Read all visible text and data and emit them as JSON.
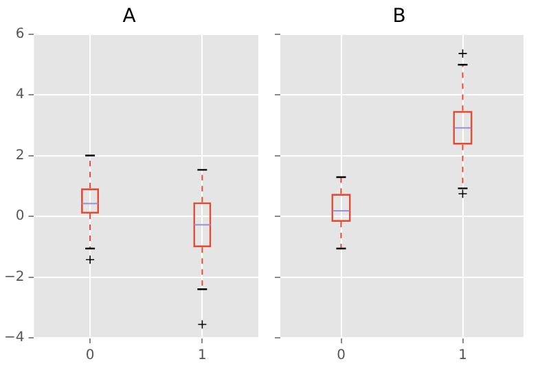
{
  "chart_data": [
    {
      "type": "box",
      "title": "A",
      "categories": [
        "0",
        "1"
      ],
      "series": [
        {
          "color": "#e24a33",
          "boxes": [
            {
              "low": -1.06,
              "q1": 0.09,
              "median": 0.42,
              "q3": 0.92,
              "high": 2.0,
              "outliers": [
                -1.43
              ]
            },
            {
              "low": -2.4,
              "q1": -1.02,
              "median": -0.28,
              "q3": 0.46,
              "high": 1.53,
              "outliers": [
                -3.56
              ]
            }
          ]
        }
      ],
      "ylim": [
        -4,
        6
      ],
      "yticks": [
        {
          "value": -4,
          "label": "−4"
        },
        {
          "value": -2,
          "label": "−2"
        },
        0,
        2,
        4,
        6
      ],
      "grid": true
    },
    {
      "type": "box",
      "title": "B",
      "categories": [
        "0",
        "1"
      ],
      "series": [
        {
          "color": "#e24a33",
          "boxes": [
            {
              "low": -1.06,
              "q1": -0.18,
              "median": 0.18,
              "q3": 0.74,
              "high": 1.29
            },
            {
              "low": 0.92,
              "q1": 2.36,
              "median": 2.91,
              "q3": 3.47,
              "high": 4.99,
              "outliers": [
                0.74,
                5.36
              ]
            }
          ]
        }
      ],
      "ylim": [
        -4,
        6
      ],
      "yticks": [
        -4,
        -2,
        0,
        2,
        4,
        6
      ],
      "grid": true,
      "tick_labels": "x"
    }
  ]
}
